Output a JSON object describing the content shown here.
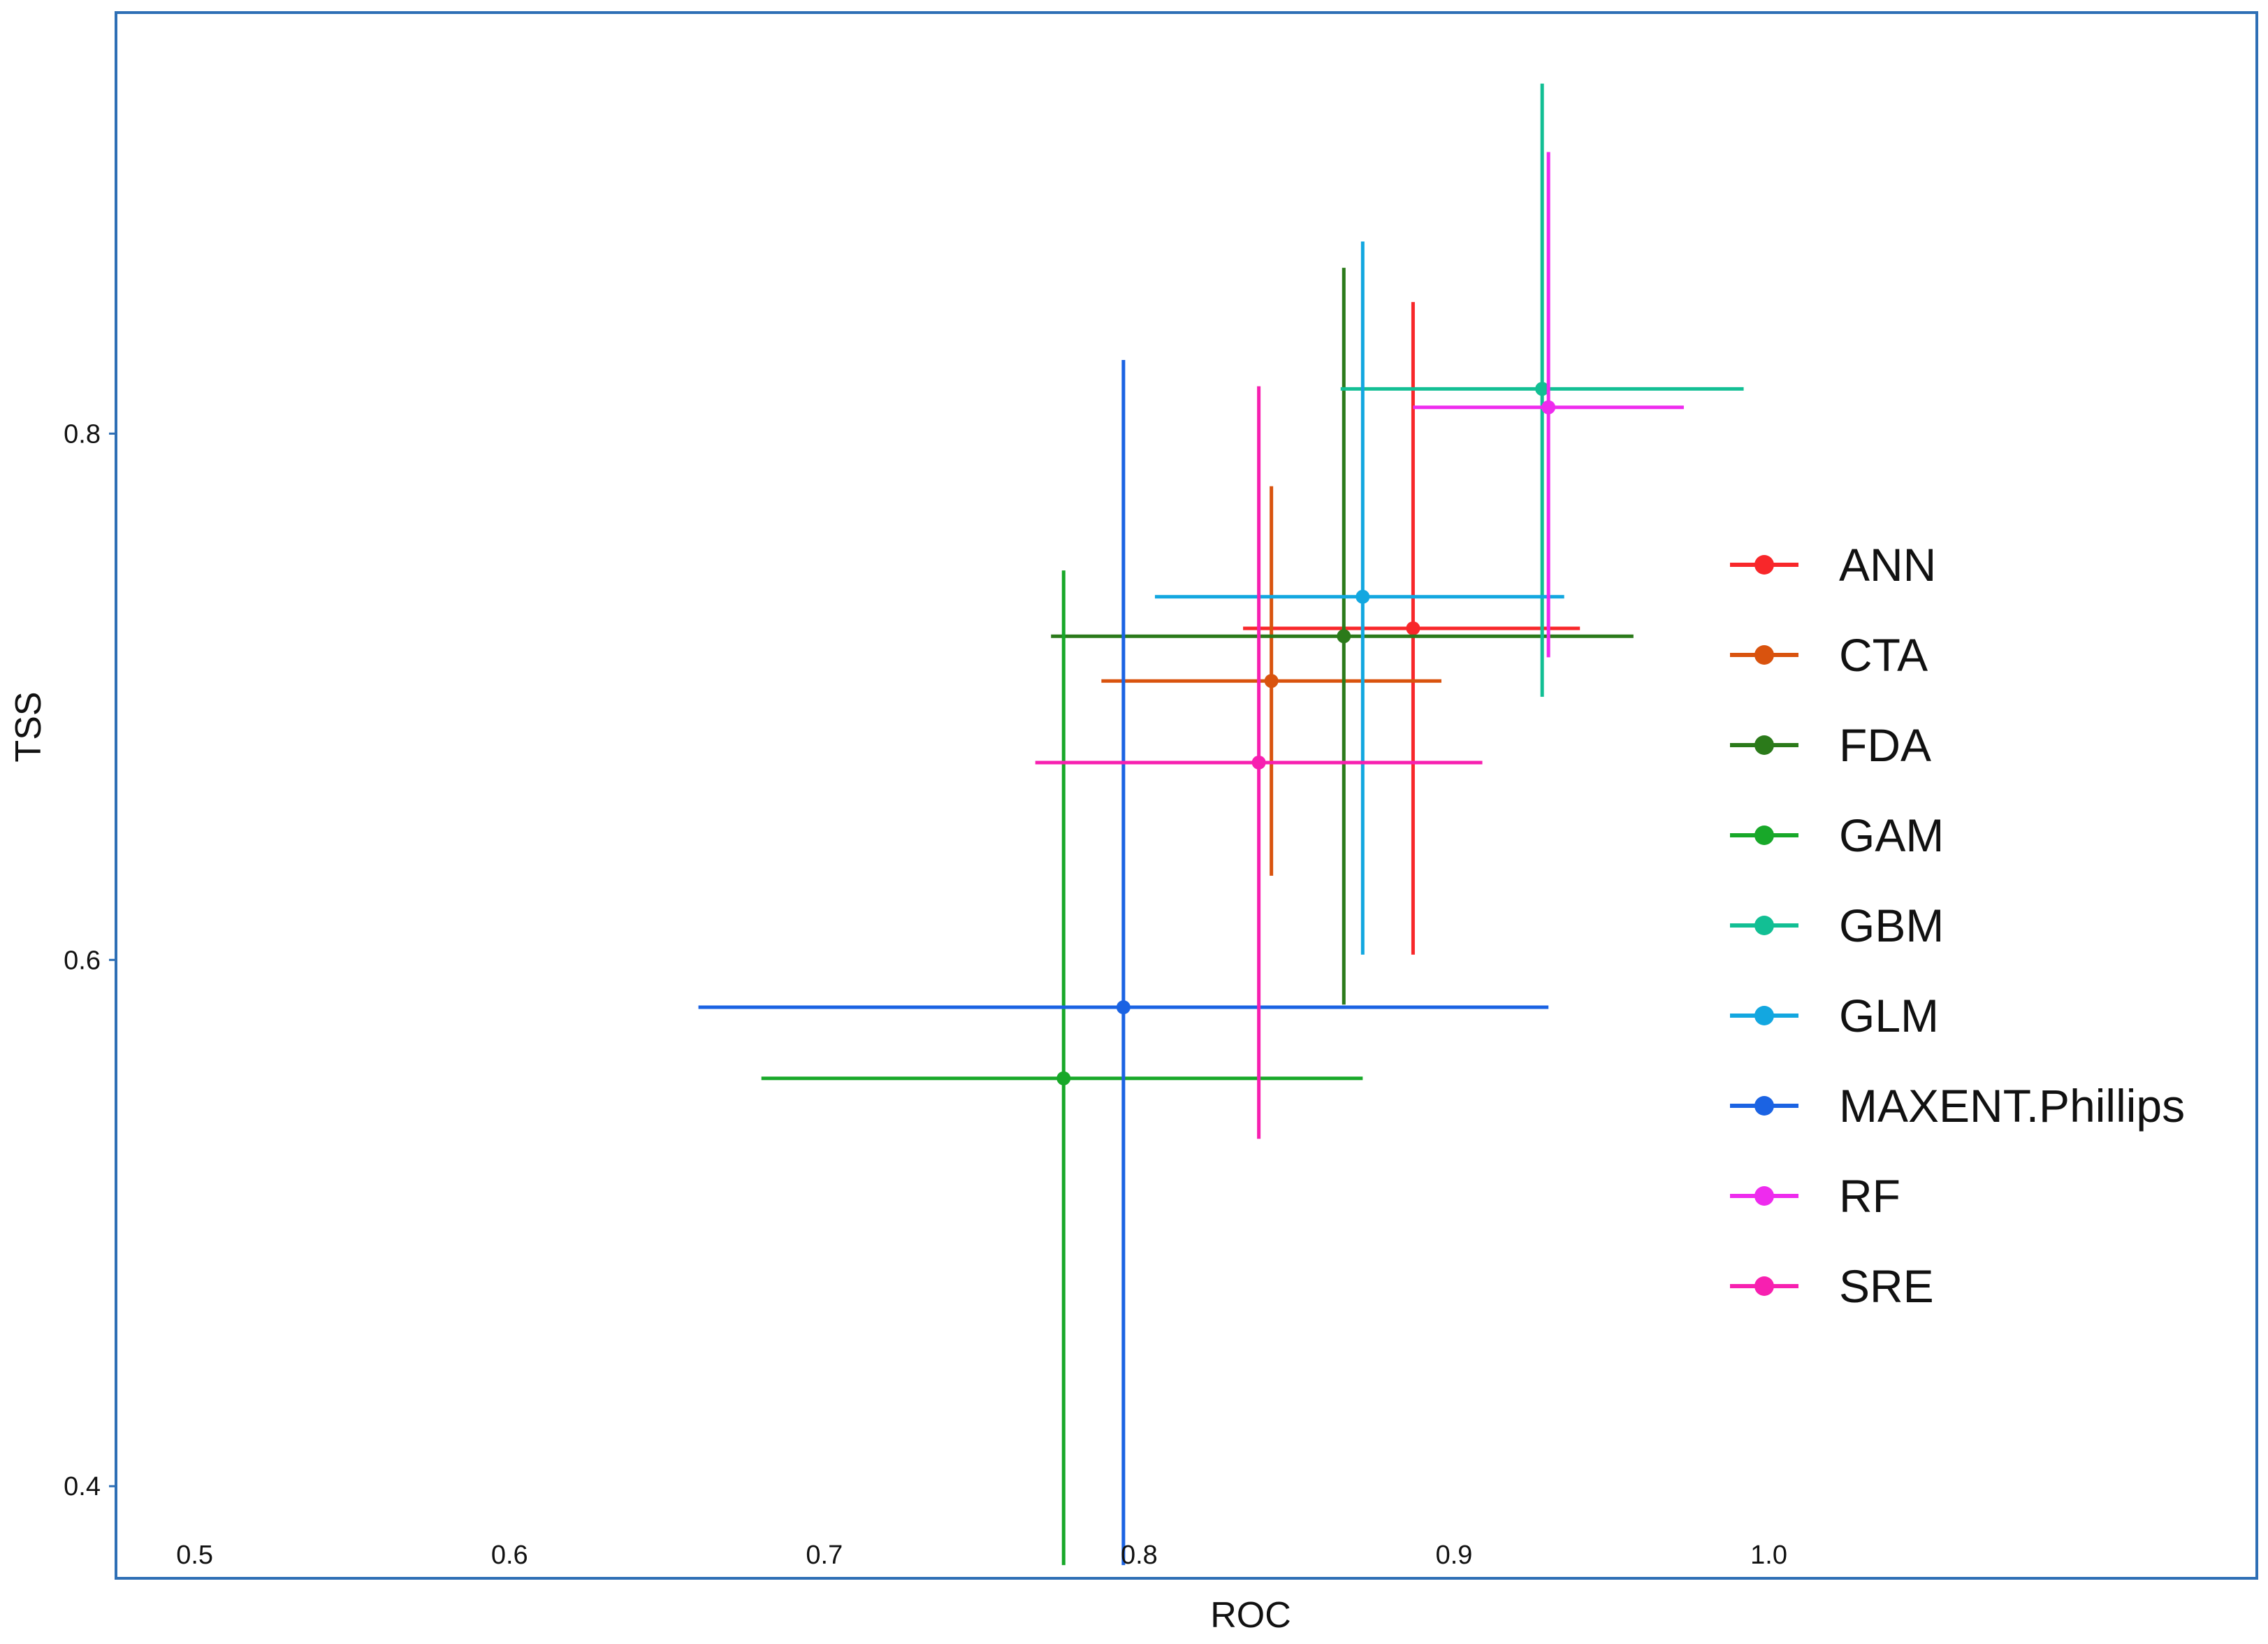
{
  "chart_data": {
    "type": "scatter",
    "title": "",
    "xlabel": "ROC",
    "ylabel": "TSS",
    "xlim": [
      0.475,
      1.155
    ],
    "ylim": [
      0.365,
      0.96
    ],
    "x_ticks": [
      0.5,
      0.6,
      0.7,
      0.8,
      0.9,
      1.0
    ],
    "x_tick_labels": [
      "0.5",
      "0.6",
      "0.7",
      "0.8",
      "0.9",
      "1.0"
    ],
    "y_ticks": [
      0.4,
      0.6,
      0.8
    ],
    "y_tick_labels": [
      "0.4",
      "0.6",
      "0.8"
    ],
    "grid": false,
    "legend_position": "right",
    "series": [
      {
        "name": "ANN",
        "color": "#F8272A",
        "x": 0.887,
        "y": 0.726,
        "x_low": 0.833,
        "x_high": 0.94,
        "y_low": 0.602,
        "y_high": 0.85
      },
      {
        "name": "CTA",
        "color": "#D9530E",
        "x": 0.842,
        "y": 0.706,
        "x_low": 0.788,
        "x_high": 0.896,
        "y_low": 0.632,
        "y_high": 0.78
      },
      {
        "name": "FDA",
        "color": "#2B7A1A",
        "x": 0.865,
        "y": 0.723,
        "x_low": 0.772,
        "x_high": 0.957,
        "y_low": 0.583,
        "y_high": 0.863
      },
      {
        "name": "GAM",
        "color": "#18A829",
        "x": 0.776,
        "y": 0.555,
        "x_low": 0.68,
        "x_high": 0.871,
        "y_low": 0.37,
        "y_high": 0.748
      },
      {
        "name": "GBM",
        "color": "#12BF94",
        "x": 0.928,
        "y": 0.817,
        "x_low": 0.864,
        "x_high": 0.992,
        "y_low": 0.7,
        "y_high": 0.933
      },
      {
        "name": "GLM",
        "color": "#13A7E0",
        "x": 0.871,
        "y": 0.738,
        "x_low": 0.805,
        "x_high": 0.935,
        "y_low": 0.602,
        "y_high": 0.873
      },
      {
        "name": "MAXENT.Phillips",
        "color": "#1B63E3",
        "x": 0.795,
        "y": 0.582,
        "x_low": 0.66,
        "x_high": 0.93,
        "y_low": 0.37,
        "y_high": 0.828
      },
      {
        "name": "RF",
        "color": "#EE2BEE",
        "x": 0.93,
        "y": 0.81,
        "x_low": 0.887,
        "x_high": 0.973,
        "y_low": 0.715,
        "y_high": 0.907
      },
      {
        "name": "SRE",
        "color": "#F720B0",
        "x": 0.838,
        "y": 0.675,
        "x_low": 0.767,
        "x_high": 0.909,
        "y_low": 0.532,
        "y_high": 0.818
      }
    ]
  }
}
